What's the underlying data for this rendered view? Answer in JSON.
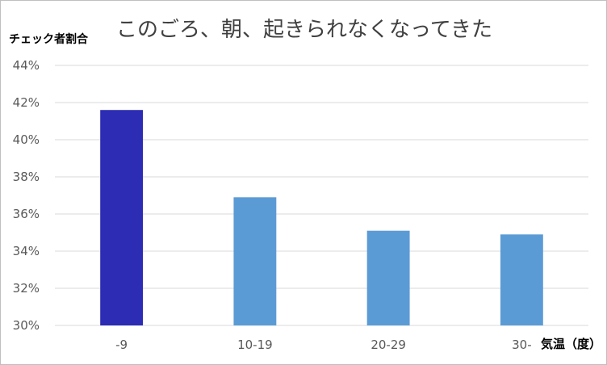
{
  "chart_data": {
    "type": "bar",
    "title": "このごろ、朝、起きられなくなってきた",
    "ylabel": "チェック者割合",
    "xlabel": "気温（度）",
    "categories": [
      "-9",
      "10-19",
      "20-29",
      "30-"
    ],
    "values": [
      41.6,
      36.9,
      35.1,
      34.9
    ],
    "ylim": [
      30,
      44
    ],
    "yticks": [
      30,
      32,
      34,
      36,
      38,
      40,
      42,
      44
    ],
    "ytick_suffix": "%",
    "grid": true,
    "legend": "none",
    "bar_colors": [
      "#2c2cb4",
      "#5b9bd5",
      "#5b9bd5",
      "#5b9bd5"
    ],
    "grid_color": "#d9d9d9"
  }
}
